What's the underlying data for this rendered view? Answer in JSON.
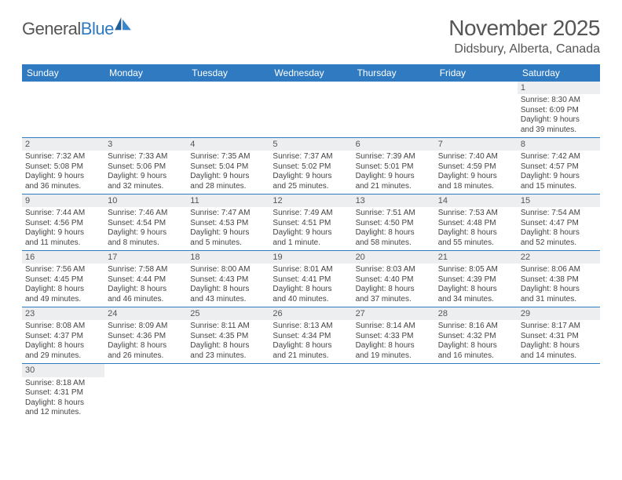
{
  "logo": {
    "text_left": "General",
    "text_right": "Blue"
  },
  "title": "November 2025",
  "location": "Didsbury, Alberta, Canada",
  "colors": {
    "header_bg": "#2f7ac0",
    "header_fg": "#ffffff",
    "daynum_bg": "#eceeef",
    "text": "#555555",
    "row_border": "#2f7ac0"
  },
  "day_headers": [
    "Sunday",
    "Monday",
    "Tuesday",
    "Wednesday",
    "Thursday",
    "Friday",
    "Saturday"
  ],
  "weeks": [
    [
      {
        "empty": true
      },
      {
        "empty": true
      },
      {
        "empty": true
      },
      {
        "empty": true
      },
      {
        "empty": true
      },
      {
        "empty": true
      },
      {
        "n": "1",
        "sunrise": "Sunrise: 8:30 AM",
        "sunset": "Sunset: 6:09 PM",
        "d1": "Daylight: 9 hours",
        "d2": "and 39 minutes."
      }
    ],
    [
      {
        "n": "2",
        "sunrise": "Sunrise: 7:32 AM",
        "sunset": "Sunset: 5:08 PM",
        "d1": "Daylight: 9 hours",
        "d2": "and 36 minutes."
      },
      {
        "n": "3",
        "sunrise": "Sunrise: 7:33 AM",
        "sunset": "Sunset: 5:06 PM",
        "d1": "Daylight: 9 hours",
        "d2": "and 32 minutes."
      },
      {
        "n": "4",
        "sunrise": "Sunrise: 7:35 AM",
        "sunset": "Sunset: 5:04 PM",
        "d1": "Daylight: 9 hours",
        "d2": "and 28 minutes."
      },
      {
        "n": "5",
        "sunrise": "Sunrise: 7:37 AM",
        "sunset": "Sunset: 5:02 PM",
        "d1": "Daylight: 9 hours",
        "d2": "and 25 minutes."
      },
      {
        "n": "6",
        "sunrise": "Sunrise: 7:39 AM",
        "sunset": "Sunset: 5:01 PM",
        "d1": "Daylight: 9 hours",
        "d2": "and 21 minutes."
      },
      {
        "n": "7",
        "sunrise": "Sunrise: 7:40 AM",
        "sunset": "Sunset: 4:59 PM",
        "d1": "Daylight: 9 hours",
        "d2": "and 18 minutes."
      },
      {
        "n": "8",
        "sunrise": "Sunrise: 7:42 AM",
        "sunset": "Sunset: 4:57 PM",
        "d1": "Daylight: 9 hours",
        "d2": "and 15 minutes."
      }
    ],
    [
      {
        "n": "9",
        "sunrise": "Sunrise: 7:44 AM",
        "sunset": "Sunset: 4:56 PM",
        "d1": "Daylight: 9 hours",
        "d2": "and 11 minutes."
      },
      {
        "n": "10",
        "sunrise": "Sunrise: 7:46 AM",
        "sunset": "Sunset: 4:54 PM",
        "d1": "Daylight: 9 hours",
        "d2": "and 8 minutes."
      },
      {
        "n": "11",
        "sunrise": "Sunrise: 7:47 AM",
        "sunset": "Sunset: 4:53 PM",
        "d1": "Daylight: 9 hours",
        "d2": "and 5 minutes."
      },
      {
        "n": "12",
        "sunrise": "Sunrise: 7:49 AM",
        "sunset": "Sunset: 4:51 PM",
        "d1": "Daylight: 9 hours",
        "d2": "and 1 minute."
      },
      {
        "n": "13",
        "sunrise": "Sunrise: 7:51 AM",
        "sunset": "Sunset: 4:50 PM",
        "d1": "Daylight: 8 hours",
        "d2": "and 58 minutes."
      },
      {
        "n": "14",
        "sunrise": "Sunrise: 7:53 AM",
        "sunset": "Sunset: 4:48 PM",
        "d1": "Daylight: 8 hours",
        "d2": "and 55 minutes."
      },
      {
        "n": "15",
        "sunrise": "Sunrise: 7:54 AM",
        "sunset": "Sunset: 4:47 PM",
        "d1": "Daylight: 8 hours",
        "d2": "and 52 minutes."
      }
    ],
    [
      {
        "n": "16",
        "sunrise": "Sunrise: 7:56 AM",
        "sunset": "Sunset: 4:45 PM",
        "d1": "Daylight: 8 hours",
        "d2": "and 49 minutes."
      },
      {
        "n": "17",
        "sunrise": "Sunrise: 7:58 AM",
        "sunset": "Sunset: 4:44 PM",
        "d1": "Daylight: 8 hours",
        "d2": "and 46 minutes."
      },
      {
        "n": "18",
        "sunrise": "Sunrise: 8:00 AM",
        "sunset": "Sunset: 4:43 PM",
        "d1": "Daylight: 8 hours",
        "d2": "and 43 minutes."
      },
      {
        "n": "19",
        "sunrise": "Sunrise: 8:01 AM",
        "sunset": "Sunset: 4:41 PM",
        "d1": "Daylight: 8 hours",
        "d2": "and 40 minutes."
      },
      {
        "n": "20",
        "sunrise": "Sunrise: 8:03 AM",
        "sunset": "Sunset: 4:40 PM",
        "d1": "Daylight: 8 hours",
        "d2": "and 37 minutes."
      },
      {
        "n": "21",
        "sunrise": "Sunrise: 8:05 AM",
        "sunset": "Sunset: 4:39 PM",
        "d1": "Daylight: 8 hours",
        "d2": "and 34 minutes."
      },
      {
        "n": "22",
        "sunrise": "Sunrise: 8:06 AM",
        "sunset": "Sunset: 4:38 PM",
        "d1": "Daylight: 8 hours",
        "d2": "and 31 minutes."
      }
    ],
    [
      {
        "n": "23",
        "sunrise": "Sunrise: 8:08 AM",
        "sunset": "Sunset: 4:37 PM",
        "d1": "Daylight: 8 hours",
        "d2": "and 29 minutes."
      },
      {
        "n": "24",
        "sunrise": "Sunrise: 8:09 AM",
        "sunset": "Sunset: 4:36 PM",
        "d1": "Daylight: 8 hours",
        "d2": "and 26 minutes."
      },
      {
        "n": "25",
        "sunrise": "Sunrise: 8:11 AM",
        "sunset": "Sunset: 4:35 PM",
        "d1": "Daylight: 8 hours",
        "d2": "and 23 minutes."
      },
      {
        "n": "26",
        "sunrise": "Sunrise: 8:13 AM",
        "sunset": "Sunset: 4:34 PM",
        "d1": "Daylight: 8 hours",
        "d2": "and 21 minutes."
      },
      {
        "n": "27",
        "sunrise": "Sunrise: 8:14 AM",
        "sunset": "Sunset: 4:33 PM",
        "d1": "Daylight: 8 hours",
        "d2": "and 19 minutes."
      },
      {
        "n": "28",
        "sunrise": "Sunrise: 8:16 AM",
        "sunset": "Sunset: 4:32 PM",
        "d1": "Daylight: 8 hours",
        "d2": "and 16 minutes."
      },
      {
        "n": "29",
        "sunrise": "Sunrise: 8:17 AM",
        "sunset": "Sunset: 4:31 PM",
        "d1": "Daylight: 8 hours",
        "d2": "and 14 minutes."
      }
    ],
    [
      {
        "n": "30",
        "sunrise": "Sunrise: 8:18 AM",
        "sunset": "Sunset: 4:31 PM",
        "d1": "Daylight: 8 hours",
        "d2": "and 12 minutes."
      },
      {
        "empty": true
      },
      {
        "empty": true
      },
      {
        "empty": true
      },
      {
        "empty": true
      },
      {
        "empty": true
      },
      {
        "empty": true
      }
    ]
  ]
}
